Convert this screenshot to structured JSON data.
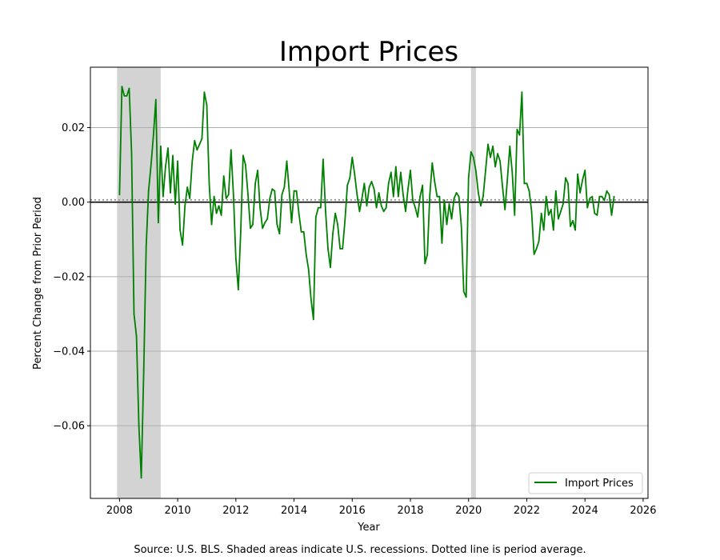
{
  "chart_data": {
    "type": "line",
    "title": "Import Prices",
    "xlabel": "Year",
    "ylabel": "Percent Change from Prior Period",
    "xlim": [
      "2007-01-01",
      "2026-03-01"
    ],
    "ylim": [
      -0.0795,
      0.0362
    ],
    "x_ticks": [
      "2008",
      "2010",
      "2012",
      "2014",
      "2016",
      "2018",
      "2020",
      "2022",
      "2024",
      "2026"
    ],
    "y_ticks": [
      0.02,
      0.0,
      -0.02,
      -0.04,
      -0.06
    ],
    "y_tick_labels": [
      "0.02",
      "0.00",
      "−0.02",
      "−0.04",
      "−0.06"
    ],
    "grid": "horizontal",
    "legend_position": "lower-right",
    "zero_line": true,
    "average_line_value": 0.0006,
    "recessions": [
      {
        "start": "2007-12-01",
        "end": "2009-06-01"
      },
      {
        "start": "2020-02-01",
        "end": "2020-04-01"
      }
    ],
    "series": [
      {
        "name": "Import Prices",
        "color": "#008000",
        "points": [
          [
            "2008-01",
            0.002
          ],
          [
            "2008-02",
            0.031
          ],
          [
            "2008-03",
            0.0285
          ],
          [
            "2008-04",
            0.0285
          ],
          [
            "2008-05",
            0.0305
          ],
          [
            "2008-06",
            0.013
          ],
          [
            "2008-07",
            -0.03
          ],
          [
            "2008-08",
            -0.036
          ],
          [
            "2008-09",
            -0.06
          ],
          [
            "2008-10",
            -0.074
          ],
          [
            "2008-11",
            -0.045
          ],
          [
            "2008-12",
            -0.012
          ],
          [
            "2009-01",
            0.003
          ],
          [
            "2009-02",
            0.01
          ],
          [
            "2009-03",
            0.018
          ],
          [
            "2009-04",
            0.0275
          ],
          [
            "2009-05",
            -0.0055
          ],
          [
            "2009-06",
            0.015
          ],
          [
            "2009-07",
            0.0015
          ],
          [
            "2009-08",
            0.0095
          ],
          [
            "2009-09",
            0.0145
          ],
          [
            "2009-10",
            0.0025
          ],
          [
            "2009-11",
            0.0125
          ],
          [
            "2009-12",
            -0.0005
          ],
          [
            "2010-01",
            0.011
          ],
          [
            "2010-02",
            -0.0075
          ],
          [
            "2010-03",
            -0.0115
          ],
          [
            "2010-04",
            -0.001
          ],
          [
            "2010-05",
            0.004
          ],
          [
            "2010-06",
            0.001
          ],
          [
            "2010-07",
            0.011
          ],
          [
            "2010-08",
            0.0165
          ],
          [
            "2010-09",
            0.014
          ],
          [
            "2010-10",
            0.0155
          ],
          [
            "2010-11",
            0.017
          ],
          [
            "2010-12",
            0.0295
          ],
          [
            "2011-01",
            0.026
          ],
          [
            "2011-02",
            0.005
          ],
          [
            "2011-03",
            -0.006
          ],
          [
            "2011-04",
            0.0015
          ],
          [
            "2011-05",
            -0.003
          ],
          [
            "2011-06",
            -0.001
          ],
          [
            "2011-07",
            -0.0035
          ],
          [
            "2011-08",
            0.007
          ],
          [
            "2011-09",
            0.001
          ],
          [
            "2011-10",
            0.002
          ],
          [
            "2011-11",
            0.014
          ],
          [
            "2011-12",
            0.002
          ],
          [
            "2012-01",
            -0.015
          ],
          [
            "2012-02",
            -0.0235
          ],
          [
            "2012-03",
            -0.008
          ],
          [
            "2012-04",
            0.0125
          ],
          [
            "2012-05",
            0.01
          ],
          [
            "2012-06",
            0.002
          ],
          [
            "2012-07",
            -0.007
          ],
          [
            "2012-08",
            -0.006
          ],
          [
            "2012-09",
            0.005
          ],
          [
            "2012-10",
            0.0085
          ],
          [
            "2012-11",
            -0.0015
          ],
          [
            "2012-12",
            -0.007
          ],
          [
            "2013-01",
            -0.0055
          ],
          [
            "2013-02",
            -0.0045
          ],
          [
            "2013-03",
            0.001
          ],
          [
            "2013-04",
            0.0035
          ],
          [
            "2013-05",
            0.003
          ],
          [
            "2013-06",
            -0.006
          ],
          [
            "2013-07",
            -0.0085
          ],
          [
            "2013-08",
            0.002
          ],
          [
            "2013-09",
            0.004
          ],
          [
            "2013-10",
            0.011
          ],
          [
            "2013-11",
            0.003
          ],
          [
            "2013-12",
            -0.0055
          ],
          [
            "2014-01",
            0.003
          ],
          [
            "2014-02",
            0.003
          ],
          [
            "2014-03",
            -0.003
          ],
          [
            "2014-04",
            -0.008
          ],
          [
            "2014-05",
            -0.008
          ],
          [
            "2014-06",
            -0.014
          ],
          [
            "2014-07",
            -0.018
          ],
          [
            "2014-08",
            -0.026
          ],
          [
            "2014-09",
            -0.0315
          ],
          [
            "2014-10",
            -0.004
          ],
          [
            "2014-11",
            -0.0015
          ],
          [
            "2014-12",
            -0.0015
          ],
          [
            "2015-01",
            0.0115
          ],
          [
            "2015-02",
            -0.0025
          ],
          [
            "2015-03",
            -0.0125
          ],
          [
            "2015-04",
            -0.0175
          ],
          [
            "2015-05",
            -0.0085
          ],
          [
            "2015-06",
            -0.003
          ],
          [
            "2015-07",
            -0.006
          ],
          [
            "2015-08",
            -0.0125
          ],
          [
            "2015-09",
            -0.0125
          ],
          [
            "2015-10",
            -0.005
          ],
          [
            "2015-11",
            0.0045
          ],
          [
            "2015-12",
            0.0065
          ],
          [
            "2016-01",
            0.012
          ],
          [
            "2016-02",
            0.0075
          ],
          [
            "2016-03",
            0.002
          ],
          [
            "2016-04",
            -0.0025
          ],
          [
            "2016-05",
            0.001
          ],
          [
            "2016-06",
            0.005
          ],
          [
            "2016-07",
            -0.001
          ],
          [
            "2016-08",
            0.004
          ],
          [
            "2016-09",
            0.0055
          ],
          [
            "2016-10",
            0.0035
          ],
          [
            "2016-11",
            -0.0015
          ],
          [
            "2016-12",
            0.0025
          ],
          [
            "2017-01",
            -0.001
          ],
          [
            "2017-02",
            -0.0025
          ],
          [
            "2017-03",
            -0.0015
          ],
          [
            "2017-04",
            0.005
          ],
          [
            "2017-05",
            0.008
          ],
          [
            "2017-06",
            0.0015
          ],
          [
            "2017-07",
            0.0095
          ],
          [
            "2017-08",
            0.0015
          ],
          [
            "2017-09",
            0.008
          ],
          [
            "2017-10",
            0.002
          ],
          [
            "2017-11",
            -0.0025
          ],
          [
            "2017-12",
            0.0035
          ],
          [
            "2018-01",
            0.0085
          ],
          [
            "2018-02",
            0.0005
          ],
          [
            "2018-03",
            -0.0015
          ],
          [
            "2018-04",
            -0.004
          ],
          [
            "2018-05",
            0.0015
          ],
          [
            "2018-06",
            0.0045
          ],
          [
            "2018-07",
            -0.0165
          ],
          [
            "2018-08",
            -0.014
          ],
          [
            "2018-09",
            0.002
          ],
          [
            "2018-10",
            0.0105
          ],
          [
            "2018-11",
            0.0055
          ],
          [
            "2018-12",
            0.0015
          ],
          [
            "2019-01",
            0.0015
          ],
          [
            "2019-02",
            -0.011
          ],
          [
            "2019-03",
            0.0005
          ],
          [
            "2019-04",
            -0.006
          ],
          [
            "2019-05",
            -0.0005
          ],
          [
            "2019-06",
            -0.0045
          ],
          [
            "2019-07",
            0.001
          ],
          [
            "2019-08",
            0.0025
          ],
          [
            "2019-09",
            0.0015
          ],
          [
            "2019-10",
            -0.0065
          ],
          [
            "2019-11",
            -0.024
          ],
          [
            "2019-12",
            -0.0255
          ],
          [
            "2020-01",
            0.0065
          ],
          [
            "2020-02",
            0.0135
          ],
          [
            "2020-03",
            0.012
          ],
          [
            "2020-04",
            0.0085
          ],
          [
            "2020-05",
            0.0025
          ],
          [
            "2020-06",
            -0.001
          ],
          [
            "2020-07",
            0.0015
          ],
          [
            "2020-08",
            0.0085
          ],
          [
            "2020-09",
            0.0155
          ],
          [
            "2020-10",
            0.012
          ],
          [
            "2020-11",
            0.015
          ],
          [
            "2020-12",
            0.0095
          ],
          [
            "2021-01",
            0.013
          ],
          [
            "2021-02",
            0.011
          ],
          [
            "2021-03",
            0.004
          ],
          [
            "2021-04",
            -0.002
          ],
          [
            "2021-05",
            0.006
          ],
          [
            "2021-06",
            0.015
          ],
          [
            "2021-07",
            0.008
          ],
          [
            "2021-08",
            -0.0035
          ],
          [
            "2021-09",
            0.0195
          ],
          [
            "2021-10",
            0.018
          ],
          [
            "2021-11",
            0.0295
          ],
          [
            "2021-12",
            0.005
          ],
          [
            "2022-01",
            0.005
          ],
          [
            "2022-02",
            0.003
          ],
          [
            "2022-03",
            -0.0025
          ],
          [
            "2022-04",
            -0.014
          ],
          [
            "2022-05",
            -0.0125
          ],
          [
            "2022-06",
            -0.0105
          ],
          [
            "2022-07",
            -0.003
          ],
          [
            "2022-08",
            -0.0075
          ],
          [
            "2022-09",
            0.0015
          ],
          [
            "2022-10",
            -0.0035
          ],
          [
            "2022-11",
            -0.002
          ],
          [
            "2022-12",
            -0.0075
          ],
          [
            "2023-01",
            0.003
          ],
          [
            "2023-02",
            -0.0045
          ],
          [
            "2023-03",
            -0.0025
          ],
          [
            "2023-04",
            -0.0005
          ],
          [
            "2023-05",
            0.0065
          ],
          [
            "2023-06",
            0.005
          ],
          [
            "2023-07",
            -0.0065
          ],
          [
            "2023-08",
            -0.005
          ],
          [
            "2023-09",
            -0.0075
          ],
          [
            "2023-10",
            0.0075
          ],
          [
            "2023-11",
            0.0025
          ],
          [
            "2023-12",
            0.006
          ],
          [
            "2024-01",
            0.0085
          ],
          [
            "2024-02",
            -0.0015
          ],
          [
            "2024-03",
            0.001
          ],
          [
            "2024-04",
            0.0015
          ],
          [
            "2024-05",
            -0.003
          ],
          [
            "2024-06",
            -0.0035
          ],
          [
            "2024-07",
            0.0015
          ],
          [
            "2024-08",
            0.0015
          ],
          [
            "2024-09",
            0.0005
          ],
          [
            "2024-10",
            0.003
          ],
          [
            "2024-11",
            0.002
          ],
          [
            "2024-12",
            -0.0035
          ],
          [
            "2025-01",
            0.0015
          ]
        ]
      }
    ]
  },
  "footnote": "Source: U.S. BLS. Shaded areas indicate U.S. recessions. Dotted line is period average."
}
